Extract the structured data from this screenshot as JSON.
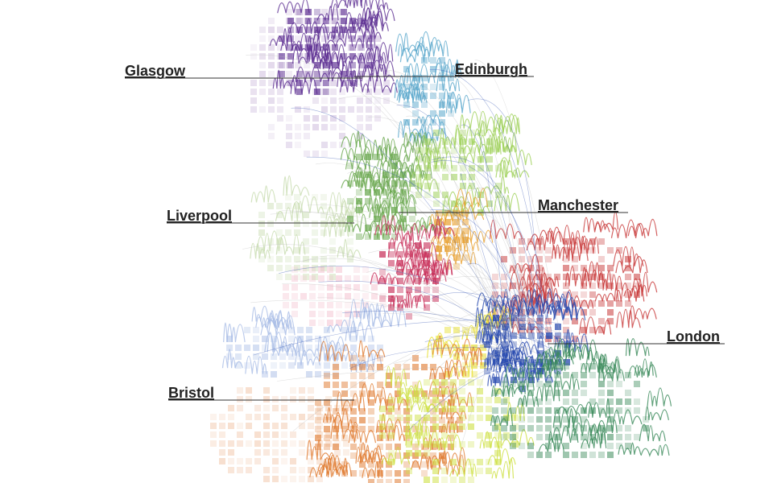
{
  "labels": {
    "glasgow": "Glasgow",
    "edinburgh": "Edinburgh",
    "liverpool": "Liverpool",
    "manchester": "Manchester",
    "london": "London",
    "bristol": "Bristol"
  }
}
